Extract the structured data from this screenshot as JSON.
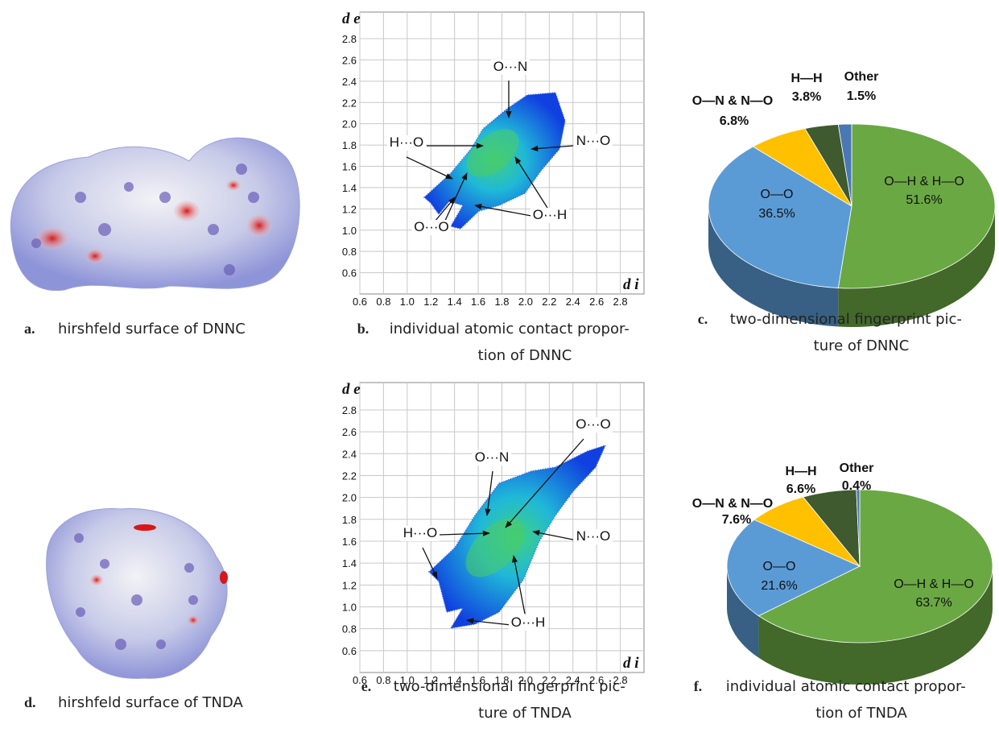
{
  "figures": [
    {
      "label": "a.",
      "caption": [
        "hirshfeld surface of DNNC"
      ]
    },
    {
      "label": "d.",
      "caption": [
        "hirshfeld surface of TNDA"
      ]
    }
  ],
  "chart_data": [
    {
      "type": "fingerprint",
      "panel": "b.",
      "caption": [
        "individual atomic contact propor-",
        "tion of DNNC"
      ],
      "xlabel": "d i",
      "ylabel": "d e",
      "xlim": [
        0.6,
        3.0
      ],
      "ylim": [
        0.4,
        3.05
      ],
      "xticks": [
        0.6,
        0.8,
        {
          "value": 1,
          "label": "1.0"
        },
        1.2,
        1.4,
        1.6,
        1.8,
        {
          "value": 2,
          "label": "2.0"
        },
        2.2,
        2.4,
        2.6,
        2.8
      ],
      "yticks": [
        0.6,
        0.8,
        {
          "value": 1,
          "label": "1.0"
        },
        1.2,
        1.4,
        1.6,
        1.8,
        {
          "value": 2,
          "label": "2.0"
        },
        2.2,
        2.4,
        2.6,
        2.8
      ],
      "grid": true,
      "annotations": [
        "O···N",
        "H···O",
        "N···O",
        "O···O",
        "O···H"
      ]
    },
    {
      "type": "pie",
      "panel": "c.",
      "caption": [
        "two-dimensional fingerprint pic-",
        "ture of DNNC"
      ],
      "categories": [
        "O—H & H—O",
        "O—O",
        "O—N & N—O",
        "H—H",
        "Other"
      ],
      "values": [
        51.6,
        36.5,
        6.8,
        3.8,
        1.5
      ],
      "value_labels": [
        "51.6%",
        "36.5%",
        "6.8%",
        "3.8%",
        "1.5%"
      ],
      "colors": [
        "#6aa843",
        "#5b9bd5",
        "#ffc000",
        "#3e5a2e",
        "#4a78b5"
      ]
    },
    {
      "type": "fingerprint",
      "panel": "e.",
      "caption": [
        "two-dimensional fingerprint pic-",
        "ture of TNDA"
      ],
      "xlabel": "d i",
      "ylabel": "d e",
      "xlim": [
        0.6,
        3.0
      ],
      "ylim": [
        0.4,
        3.05
      ],
      "xticks": [
        0.6,
        0.8,
        {
          "value": 1,
          "label": "1.0"
        },
        1.2,
        1.4,
        1.6,
        1.8,
        {
          "value": 2,
          "label": "2.0"
        },
        2.2,
        2.4,
        2.6,
        2.8
      ],
      "yticks": [
        0.6,
        0.8,
        {
          "value": 1,
          "label": "1.0"
        },
        1.2,
        1.4,
        1.6,
        1.8,
        {
          "value": 2,
          "label": "2.0"
        },
        2.2,
        2.4,
        2.6,
        2.8
      ],
      "grid": true,
      "annotations": [
        "O···O",
        "O···N",
        "H···O",
        "N···O",
        "O···H"
      ]
    },
    {
      "type": "pie",
      "panel": "f.",
      "caption": [
        "individual atomic contact propor-",
        "tion of TNDA"
      ],
      "categories": [
        "O—H & H—O",
        "O—O",
        "O—N & N—O",
        "H—H",
        "Other"
      ],
      "values": [
        63.7,
        21.6,
        7.6,
        6.6,
        0.4
      ],
      "value_labels": [
        "63.7%",
        "21.6%",
        "7.6%",
        "6.6%",
        "0.4%"
      ],
      "colors": [
        "#6aa843",
        "#5b9bd5",
        "#ffc000",
        "#3e5a2e",
        "#4a78b5"
      ]
    }
  ]
}
